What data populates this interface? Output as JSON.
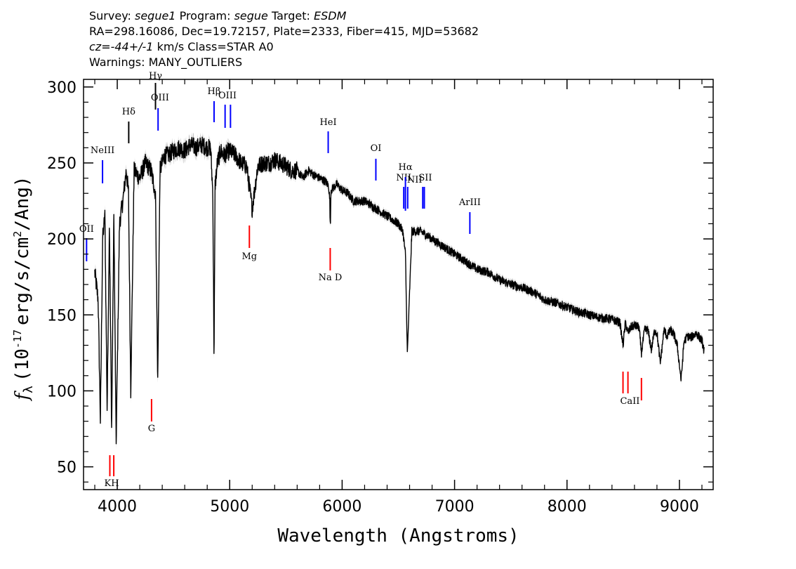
{
  "header": {
    "line1": {
      "survey_label": "Survey:",
      "survey": "segue1",
      "program_label": "Program:",
      "program": "segue",
      "target_label": "Target:",
      "target": "ESDM"
    },
    "line2": "RA=298.16086, Dec=19.72157, Plate=2333, Fiber=415, MJD=53682",
    "line3": {
      "cz": "cz=-44+/-1",
      "rest": "km/s Class=STAR A0"
    },
    "line4": "Warnings: MANY_OUTLIERS"
  },
  "chart_data": {
    "type": "line",
    "xlabel": "Wavelength (Angstroms)",
    "ylabel_parts": {
      "f": "f",
      "sub": "λ",
      "pre": "(10",
      "exp": "-17",
      "mid": "erg/s/cm",
      "exp2": "2",
      "post": "/Ang)"
    },
    "xlim": [
      3700,
      9300
    ],
    "ylim": [
      35,
      305
    ],
    "xticks": [
      4000,
      5000,
      6000,
      7000,
      8000,
      9000
    ],
    "xtick_labels": [
      "4000",
      "5000",
      "6000",
      "7000",
      "8000",
      "9000"
    ],
    "yticks": [
      50,
      100,
      150,
      200,
      250,
      300
    ],
    "ytick_labels": [
      "50",
      "100",
      "150",
      "200",
      "250",
      "300"
    ],
    "series": [
      {
        "x": [
          3800,
          3830,
          3850,
          3870,
          3890,
          3910,
          3930,
          3950,
          3970,
          3990,
          4020,
          4050,
          4080,
          4100,
          4120,
          4150,
          4200,
          4250,
          4300,
          4340,
          4360,
          4380,
          4420,
          4450,
          4500,
          4550,
          4600,
          4650,
          4700,
          4750,
          4800,
          4830,
          4850,
          4861,
          4870,
          4890,
          4920,
          4950,
          5000,
          5050,
          5100,
          5150,
          5200,
          5250,
          5300,
          5350,
          5400,
          5450,
          5500,
          5550,
          5600,
          5650,
          5700,
          5750,
          5800,
          5850,
          5880,
          5890,
          5895,
          5900,
          5950,
          6000,
          6050,
          6100,
          6200,
          6300,
          6400,
          6500,
          6540,
          6563,
          6580,
          6620,
          6700,
          6800,
          6900,
          7000,
          7100,
          7200,
          7300,
          7400,
          7500,
          7600,
          7700,
          7800,
          7900,
          8000,
          8100,
          8200,
          8300,
          8400,
          8470,
          8498,
          8520,
          8542,
          8570,
          8600,
          8640,
          8662,
          8690,
          8720,
          8750,
          8780,
          8800,
          8830,
          8862,
          8890,
          8920,
          8950,
          8980,
          9015,
          9040,
          9070,
          9100,
          9150,
          9200,
          9220
        ],
        "y": [
          178,
          160,
          80,
          200,
          215,
          88,
          210,
          75,
          215,
          65,
          210,
          225,
          245,
          230,
          100,
          245,
          240,
          250,
          245,
          230,
          105,
          245,
          255,
          255,
          258,
          260,
          258,
          262,
          260,
          262,
          260,
          260,
          230,
          118,
          235,
          250,
          258,
          255,
          258,
          255,
          250,
          248,
          220,
          248,
          250,
          250,
          252,
          250,
          248,
          245,
          245,
          240,
          245,
          242,
          240,
          238,
          235,
          225,
          205,
          232,
          236,
          232,
          230,
          225,
          225,
          220,
          215,
          210,
          205,
          190,
          124,
          205,
          205,
          200,
          195,
          190,
          185,
          180,
          178,
          173,
          170,
          168,
          165,
          160,
          158,
          155,
          152,
          150,
          148,
          147,
          145,
          130,
          145,
          138,
          142,
          143,
          142,
          125,
          140,
          140,
          127,
          140,
          138,
          118,
          140,
          136,
          140,
          137,
          130,
          107,
          132,
          136,
          135,
          138,
          133,
          126
        ],
        "noise_amplitude": 3
      }
    ],
    "emission_lines": [
      {
        "label": "OII",
        "x": 3727
      },
      {
        "label": "NeIII",
        "x": 3869
      },
      {
        "label": "Hδ",
        "x": 4102
      },
      {
        "label": "Hγ",
        "x": 4340
      },
      {
        "label": "OIII",
        "x": 4363
      },
      {
        "label": "Hβ",
        "x": 4861
      },
      {
        "label": "OIII",
        "x": 4959
      },
      {
        "label": "OIII",
        "x": 5007
      },
      {
        "label": "HeI",
        "x": 5876
      },
      {
        "label": "OI",
        "x": 6300
      },
      {
        "label": "NII",
        "x": 6548
      },
      {
        "label": "Hα",
        "x": 6563
      },
      {
        "label": "NII",
        "x": 6583
      },
      {
        "label": "SII",
        "x": 6717
      },
      {
        "label": "SII",
        "x": 6731
      },
      {
        "label": "ArIII",
        "x": 7136
      }
    ],
    "absorption_lines": [
      {
        "label": "K",
        "x": 3934
      },
      {
        "label": "H",
        "x": 3969
      },
      {
        "label": "G",
        "x": 4305
      },
      {
        "label": "Mg",
        "x": 5175
      },
      {
        "label": "Na D",
        "x": 5894
      },
      {
        "label": "CaII",
        "x": 8498
      },
      {
        "label": "CaII",
        "x": 8542
      },
      {
        "label": "CaII",
        "x": 8662
      }
    ],
    "colors": {
      "spectrum": "#000000",
      "error": "#b0b0b0",
      "emission": "#0000ff",
      "absorption": "#ff0000",
      "balmer": "#000000"
    }
  }
}
